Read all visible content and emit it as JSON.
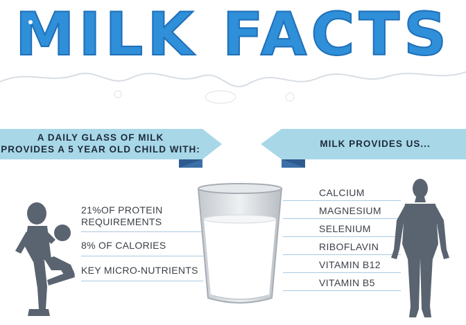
{
  "title": "MILK FACTS",
  "left_banner": {
    "line1": "A DAILY GLASS OF MILK",
    "line2": "PROVIDES A 5 YEAR OLD CHILD WITH:"
  },
  "right_banner": {
    "text": "MILK PROVIDES US..."
  },
  "child_stats": [
    {
      "line1": "21%OF PROTEIN",
      "line2": "REQUIREMENTS"
    },
    {
      "line1": "8% OF CALORIES",
      "line2": ""
    },
    {
      "line1": "KEY MICRO-NUTRIENTS",
      "line2": ""
    }
  ],
  "nutrients": [
    "CALCIUM",
    "MAGNESIUM",
    "SELENIUM",
    "RIBOFLAVIN",
    "VITAMIN B12",
    "VITAMIN B5"
  ],
  "colors": {
    "title_blue": "#2f8fd8",
    "banner_light": "#a8d8e8",
    "banner_dark": "#3d6fa8",
    "silhouette": "#5a6470",
    "text": "#3a3f47"
  }
}
